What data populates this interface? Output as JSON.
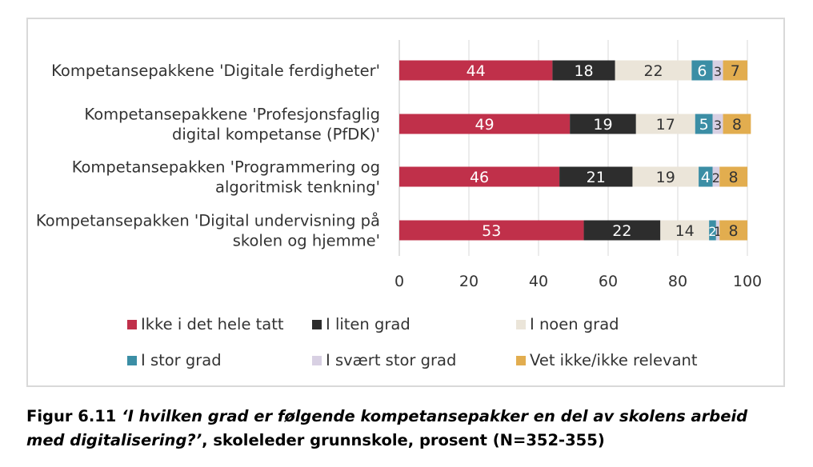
{
  "chart_data": {
    "type": "bar",
    "orientation": "horizontal",
    "stacked": true,
    "categories": [
      "Kompetansepakkene 'Digitale ferdigheter'",
      "Kompetansepakkene 'Profesjonsfaglig digital kompetanse (PfDK)'",
      "Kompetansepakken 'Programmering og algoritmisk tenkning'",
      "Kompetansepakken 'Digital undervisning på skolen og hjemme'"
    ],
    "category_lines": [
      [
        "Kompetansepakkene 'Digitale ferdigheter'"
      ],
      [
        "Kompetansepakkene 'Profesjonsfaglig",
        "digital kompetanse (PfDK)'"
      ],
      [
        "Kompetansepakken 'Programmering og",
        "algoritmisk tenkning'"
      ],
      [
        "Kompetansepakken 'Digital undervisning på",
        "skolen og hjemme'"
      ]
    ],
    "series": [
      {
        "name": "Ikke i det hele tatt",
        "color": "#c0304a",
        "label_color": "#ffffff",
        "values": [
          44,
          49,
          46,
          53
        ]
      },
      {
        "name": "I liten grad",
        "color": "#2d2d2d",
        "label_color": "#ffffff",
        "values": [
          18,
          19,
          21,
          22
        ]
      },
      {
        "name": "I noen grad",
        "color": "#ebe5d9",
        "label_color": "#333333",
        "values": [
          22,
          17,
          19,
          14
        ]
      },
      {
        "name": "I stor grad",
        "color": "#3b8ea5",
        "label_color": "#ffffff",
        "values": [
          6,
          5,
          4,
          2
        ]
      },
      {
        "name": "I svært stor grad",
        "color": "#d8d0e3",
        "label_color": "#333333",
        "values": [
          3,
          3,
          2,
          1
        ]
      },
      {
        "name": "Vet ikke/ikke relevant",
        "color": "#e2ad4f",
        "label_color": "#333333",
        "values": [
          7,
          8,
          8,
          8
        ]
      }
    ],
    "xlim": [
      0,
      100
    ],
    "xticks": [
      "0",
      "20",
      "40",
      "60",
      "80",
      "100"
    ],
    "grid": true,
    "legend_position": "bottom"
  },
  "caption": {
    "prefix": "Figur 6.11 ",
    "italic_line1": "‘I hvilken grad er følgende kompetansepakker en del av skolens arbeid",
    "italic_line2": "med digitalisering?’",
    "suffix": ", skoleleder grunnskole, prosent (N=352-355)"
  }
}
